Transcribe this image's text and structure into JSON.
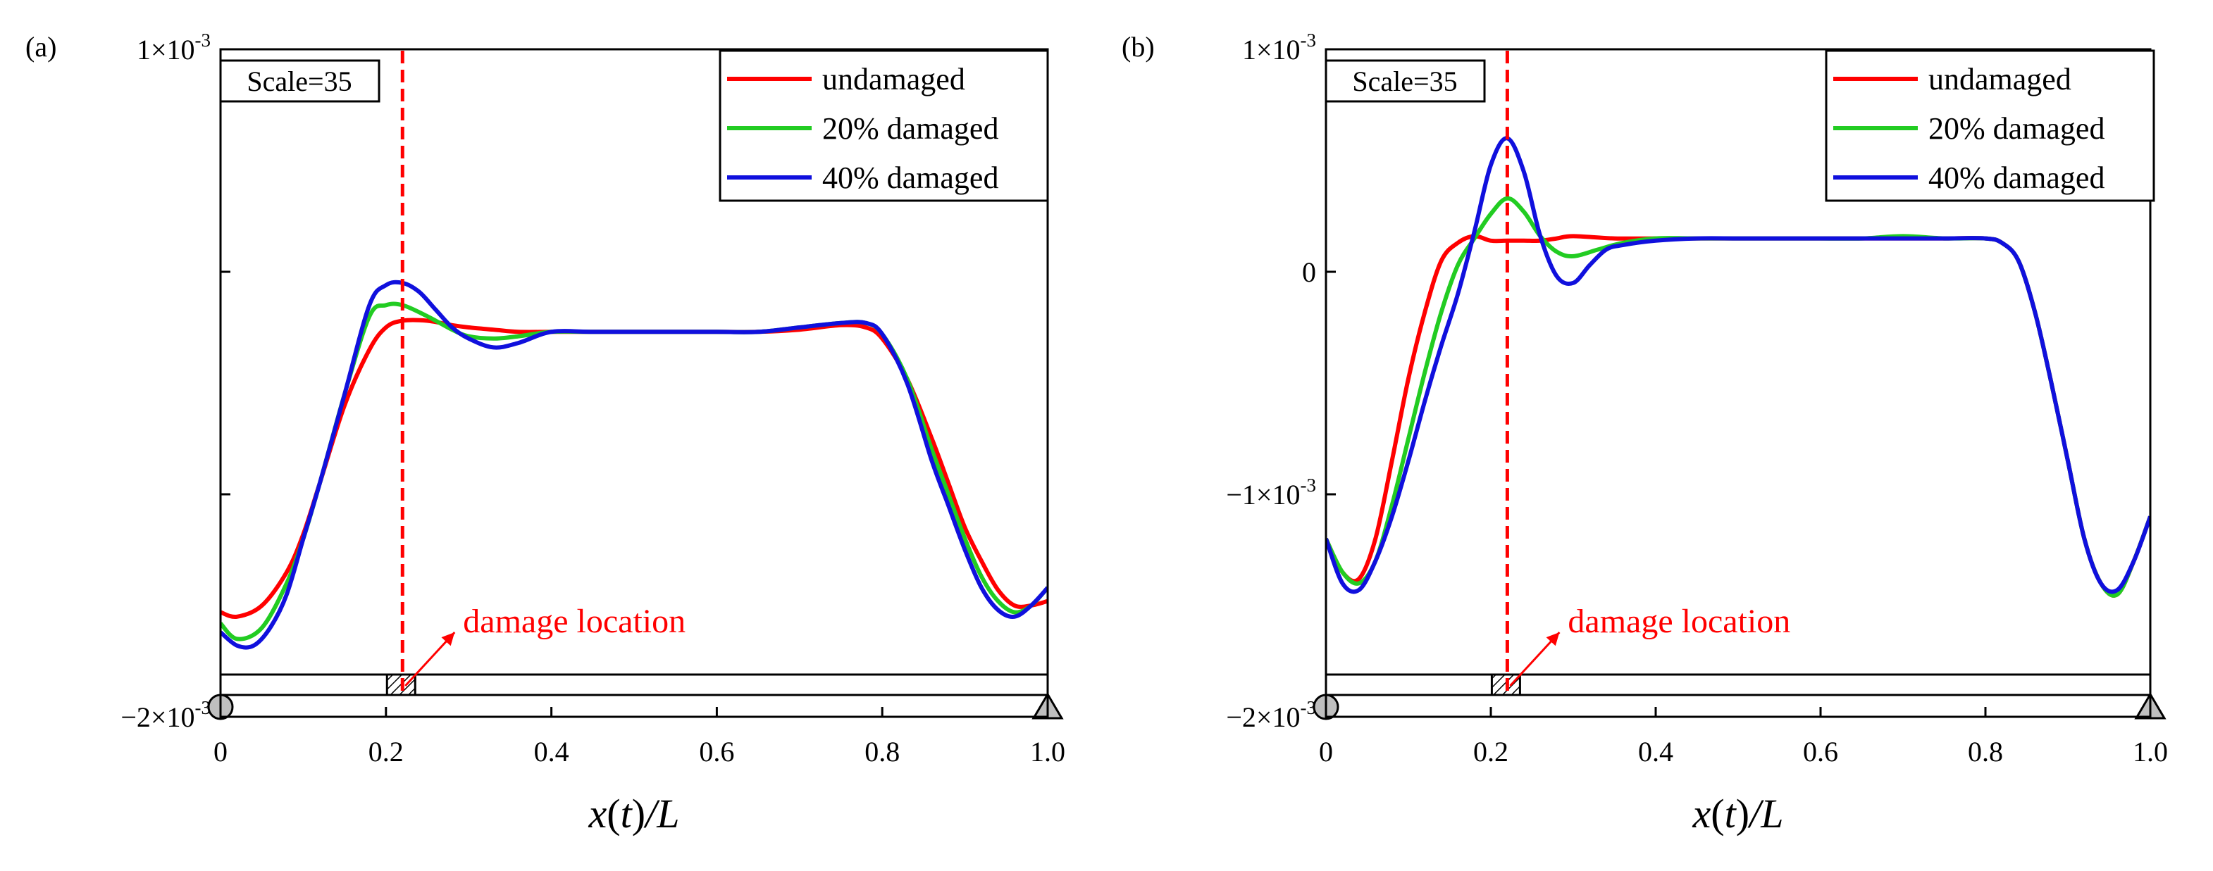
{
  "colors": {
    "undamaged": "#ff0000",
    "damaged_20": "#22cc22",
    "damaged_40": "#1010dd",
    "damage_marker": "#ff0000",
    "support": "#bfbfbf"
  },
  "chart_data": [
    {
      "panel_label": "(a)",
      "type": "line",
      "xlabel": "x(t)/L",
      "ylabel": "",
      "xlim": [
        0,
        1.0
      ],
      "ylim": [
        -0.002,
        0.001
      ],
      "x_ticks": [
        0,
        0.2,
        0.4,
        0.6,
        0.8,
        1.0
      ],
      "x_tick_labels": [
        "0",
        "0.2",
        "0.4",
        "0.6",
        "0.8",
        "1.0"
      ],
      "y_ticks": [
        {
          "value": 0.001,
          "mant": "1×10",
          "exp": "-3"
        },
        {
          "value": -0.002,
          "mant": "−2×10",
          "exp": "-3"
        }
      ],
      "y_minor_ticks": [
        0.0,
        -0.001
      ],
      "scale_label": "Scale=35",
      "damage_location": 0.22,
      "damage_label": "damage location",
      "legend": [
        "undamaged",
        "20% damaged",
        "40% damaged"
      ],
      "series": [
        {
          "name": "undamaged",
          "x": [
            0,
            0.02,
            0.05,
            0.08,
            0.1,
            0.12,
            0.15,
            0.18,
            0.2,
            0.22,
            0.25,
            0.28,
            0.3,
            0.33,
            0.36,
            0.4,
            0.45,
            0.5,
            0.55,
            0.6,
            0.65,
            0.7,
            0.75,
            0.78,
            0.8,
            0.83,
            0.86,
            0.88,
            0.9,
            0.92,
            0.94,
            0.96,
            0.98,
            1.0
          ],
          "y": [
            -0.00153,
            -0.00155,
            -0.0015,
            -0.00135,
            -0.00118,
            -0.00095,
            -0.0006,
            -0.00035,
            -0.00025,
            -0.00022,
            -0.00022,
            -0.00024,
            -0.00025,
            -0.00026,
            -0.00027,
            -0.00027,
            -0.00027,
            -0.00027,
            -0.00027,
            -0.00027,
            -0.00027,
            -0.00026,
            -0.00024,
            -0.00025,
            -0.0003,
            -0.00048,
            -0.00075,
            -0.00095,
            -0.00115,
            -0.0013,
            -0.00143,
            -0.0015,
            -0.0015,
            -0.00148
          ]
        },
        {
          "name": "20% damaged",
          "x": [
            0,
            0.02,
            0.05,
            0.08,
            0.1,
            0.12,
            0.15,
            0.18,
            0.2,
            0.22,
            0.25,
            0.28,
            0.3,
            0.33,
            0.36,
            0.4,
            0.45,
            0.5,
            0.55,
            0.6,
            0.65,
            0.7,
            0.75,
            0.78,
            0.8,
            0.83,
            0.86,
            0.88,
            0.9,
            0.92,
            0.94,
            0.96,
            0.98,
            1.0
          ],
          "y": [
            -0.00158,
            -0.00165,
            -0.0016,
            -0.0014,
            -0.0012,
            -0.00095,
            -0.00055,
            -0.0002,
            -0.00015,
            -0.00015,
            -0.0002,
            -0.00026,
            -0.00029,
            -0.0003,
            -0.00029,
            -0.00027,
            -0.00027,
            -0.00027,
            -0.00027,
            -0.00027,
            -0.00027,
            -0.00025,
            -0.00023,
            -0.00023,
            -0.00028,
            -0.00048,
            -0.0008,
            -0.001,
            -0.0012,
            -0.00137,
            -0.00148,
            -0.00153,
            -0.0015,
            -0.00142
          ]
        },
        {
          "name": "40% damaged",
          "x": [
            0,
            0.02,
            0.04,
            0.06,
            0.08,
            0.1,
            0.12,
            0.15,
            0.18,
            0.2,
            0.22,
            0.24,
            0.26,
            0.28,
            0.3,
            0.33,
            0.36,
            0.4,
            0.45,
            0.5,
            0.55,
            0.6,
            0.65,
            0.7,
            0.75,
            0.78,
            0.8,
            0.83,
            0.86,
            0.88,
            0.9,
            0.92,
            0.94,
            0.96,
            0.98,
            1.0
          ],
          "y": [
            -0.00162,
            -0.00168,
            -0.00168,
            -0.0016,
            -0.00145,
            -0.0012,
            -0.00095,
            -0.00055,
            -0.00015,
            -6e-05,
            -5e-05,
            -9e-05,
            -0.00017,
            -0.00025,
            -0.0003,
            -0.00034,
            -0.00032,
            -0.00027,
            -0.00027,
            -0.00027,
            -0.00027,
            -0.00027,
            -0.00027,
            -0.00025,
            -0.00023,
            -0.00023,
            -0.00028,
            -0.0005,
            -0.00085,
            -0.00105,
            -0.00125,
            -0.00142,
            -0.00152,
            -0.00155,
            -0.0015,
            -0.00142
          ]
        }
      ]
    },
    {
      "panel_label": "(b)",
      "type": "line",
      "xlabel": "x(t)/L",
      "ylabel": "",
      "xlim": [
        0,
        1.0
      ],
      "ylim": [
        -0.002,
        0.001
      ],
      "x_ticks": [
        0,
        0.2,
        0.4,
        0.6,
        0.8,
        1.0
      ],
      "x_tick_labels": [
        "0",
        "0.2",
        "0.4",
        "0.6",
        "0.8",
        "1.0"
      ],
      "y_ticks": [
        {
          "value": 0.001,
          "mant": "1×10",
          "exp": "-3"
        },
        {
          "value": 0.0,
          "mant": "0",
          "exp": ""
        },
        {
          "value": -0.001,
          "mant": "−1×10",
          "exp": "-3"
        },
        {
          "value": -0.002,
          "mant": "−2×10",
          "exp": "-3"
        }
      ],
      "y_minor_ticks": [],
      "scale_label": "Scale=35",
      "damage_location": 0.22,
      "damage_label": "damage location",
      "legend": [
        "undamaged",
        "20% damaged",
        "40% damaged"
      ],
      "series": [
        {
          "name": "undamaged",
          "x": [
            0,
            0.02,
            0.04,
            0.06,
            0.08,
            0.1,
            0.12,
            0.14,
            0.16,
            0.18,
            0.2,
            0.22,
            0.24,
            0.26,
            0.28,
            0.3,
            0.35,
            0.4,
            0.45,
            0.5,
            0.55,
            0.6,
            0.65,
            0.7,
            0.75,
            0.8,
            0.82,
            0.84,
            0.86,
            0.88,
            0.9,
            0.92,
            0.94,
            0.96,
            0.98,
            1.0
          ],
          "y": [
            -0.0012,
            -0.00135,
            -0.00138,
            -0.0012,
            -0.00085,
            -0.00048,
            -0.00018,
            5e-05,
            0.00013,
            0.00016,
            0.00014,
            0.00014,
            0.00014,
            0.00014,
            0.00015,
            0.00016,
            0.00015,
            0.00015,
            0.00015,
            0.00015,
            0.00015,
            0.00015,
            0.00015,
            0.00015,
            0.00015,
            0.00015,
            0.00013,
            5e-05,
            -0.00018,
            -0.0005,
            -0.00085,
            -0.0012,
            -0.0014,
            -0.00145,
            -0.0013,
            -0.0011
          ]
        },
        {
          "name": "20% damaged",
          "x": [
            0,
            0.02,
            0.04,
            0.06,
            0.08,
            0.1,
            0.12,
            0.14,
            0.16,
            0.18,
            0.2,
            0.22,
            0.24,
            0.26,
            0.28,
            0.3,
            0.33,
            0.36,
            0.4,
            0.45,
            0.5,
            0.55,
            0.6,
            0.65,
            0.7,
            0.75,
            0.8,
            0.82,
            0.84,
            0.86,
            0.88,
            0.9,
            0.92,
            0.94,
            0.96,
            0.98,
            1.0
          ],
          "y": [
            -0.0012,
            -0.00135,
            -0.0014,
            -0.0013,
            -0.00105,
            -0.00075,
            -0.00045,
            -0.00018,
            3e-05,
            0.00015,
            0.00026,
            0.00033,
            0.00027,
            0.00016,
            9e-05,
            7e-05,
            0.0001,
            0.00013,
            0.00015,
            0.00015,
            0.00015,
            0.00015,
            0.00015,
            0.00015,
            0.00016,
            0.00015,
            0.00015,
            0.00013,
            5e-05,
            -0.00018,
            -0.0005,
            -0.00085,
            -0.0012,
            -0.0014,
            -0.00145,
            -0.0013,
            -0.0011
          ]
        },
        {
          "name": "40% damaged",
          "x": [
            0,
            0.02,
            0.04,
            0.06,
            0.08,
            0.1,
            0.12,
            0.14,
            0.16,
            0.18,
            0.2,
            0.22,
            0.24,
            0.26,
            0.28,
            0.3,
            0.32,
            0.34,
            0.36,
            0.4,
            0.45,
            0.5,
            0.55,
            0.6,
            0.65,
            0.7,
            0.75,
            0.8,
            0.82,
            0.84,
            0.86,
            0.88,
            0.9,
            0.92,
            0.94,
            0.96,
            0.98,
            1.0
          ],
          "y": [
            -0.0012,
            -0.0014,
            -0.00143,
            -0.0013,
            -0.0011,
            -0.00085,
            -0.00058,
            -0.00033,
            -0.0001,
            0.00018,
            0.00048,
            0.0006,
            0.00045,
            0.00016,
            -2e-05,
            -5e-05,
            3e-05,
            0.0001,
            0.00012,
            0.00014,
            0.00015,
            0.00015,
            0.00015,
            0.00015,
            0.00015,
            0.00015,
            0.00015,
            0.00015,
            0.00013,
            5e-05,
            -0.00018,
            -0.0005,
            -0.00085,
            -0.0012,
            -0.0014,
            -0.00143,
            -0.0013,
            -0.0011
          ]
        }
      ]
    }
  ]
}
